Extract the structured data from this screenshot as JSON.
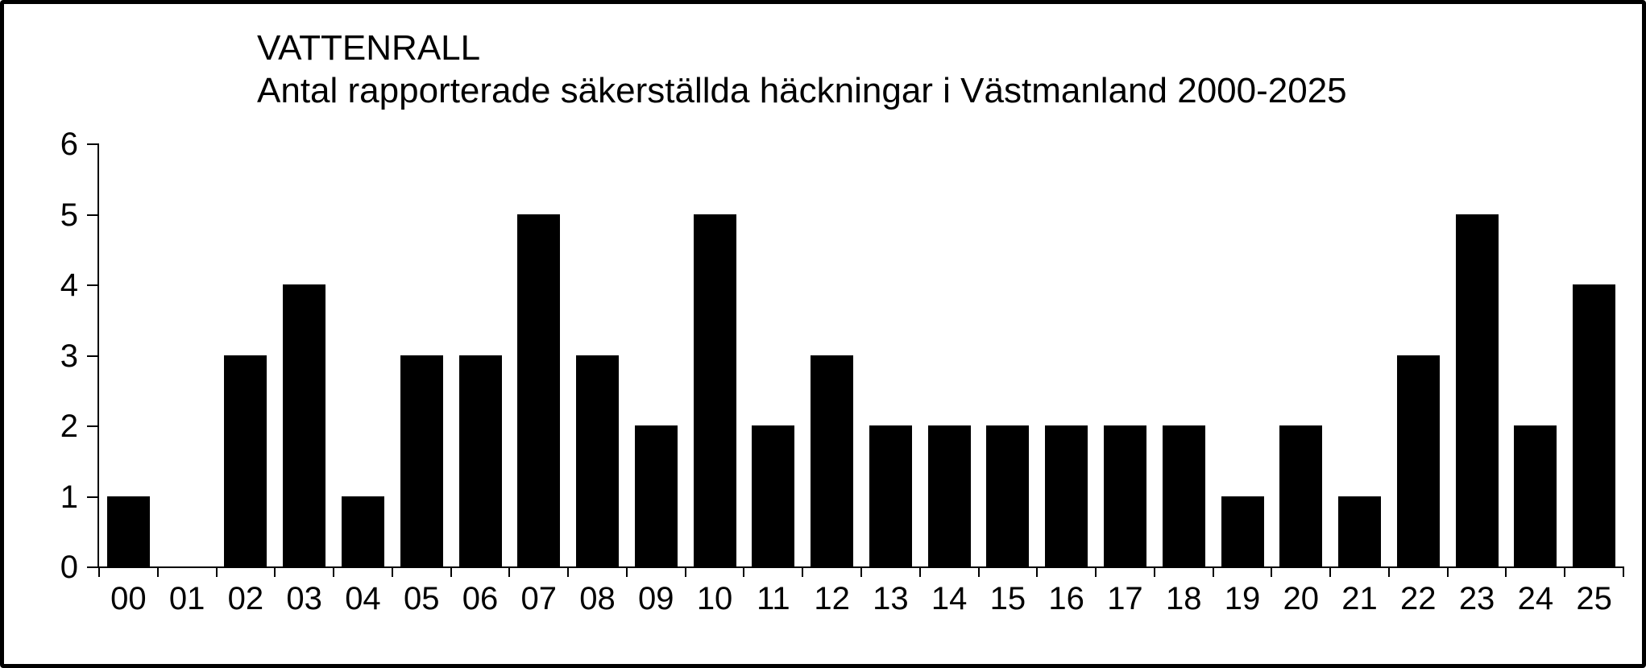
{
  "colors": {
    "bar": "#000000",
    "background": "#ffffff",
    "border": "#000000",
    "axis": "#000000",
    "text": "#000000"
  },
  "chart_data": {
    "type": "bar",
    "title": "VATTENRALL",
    "subtitle": "Antal rapporterade säkerställda häckningar i Västmanland 2000-2025",
    "categories": [
      "00",
      "01",
      "02",
      "03",
      "04",
      "05",
      "06",
      "07",
      "08",
      "09",
      "10",
      "11",
      "12",
      "13",
      "14",
      "15",
      "16",
      "17",
      "18",
      "19",
      "20",
      "21",
      "22",
      "23",
      "24",
      "25"
    ],
    "values": [
      1,
      0,
      3,
      4,
      1,
      3,
      3,
      5,
      3,
      2,
      5,
      2,
      3,
      2,
      2,
      2,
      2,
      2,
      2,
      1,
      2,
      1,
      3,
      5,
      2,
      4
    ],
    "xlabel": "",
    "ylabel": "",
    "ylim": [
      0,
      6
    ],
    "yticks": [
      0,
      1,
      2,
      3,
      4,
      5,
      6
    ],
    "grid": false,
    "legend": null
  }
}
